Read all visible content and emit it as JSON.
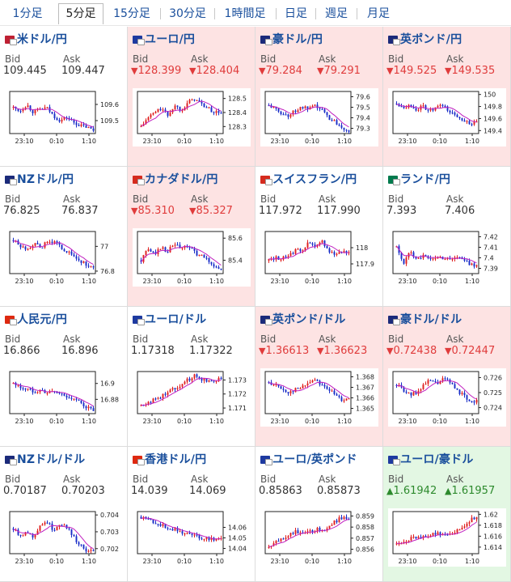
{
  "tabs": [
    {
      "label": "1分足",
      "active": false
    },
    {
      "label": "5分足",
      "active": true
    },
    {
      "label": "15分足",
      "active": false
    },
    {
      "label": "30分足",
      "active": false
    },
    {
      "label": "1時間足",
      "active": false
    },
    {
      "label": "日足",
      "active": false
    },
    {
      "label": "週足",
      "active": false
    },
    {
      "label": "月足",
      "active": false
    }
  ],
  "labels": {
    "bid": "Bid",
    "ask": "Ask"
  },
  "colors": {
    "down_bg": "#fde3e3",
    "up_bg": "#e3f7e3",
    "up_candle": "#e02020",
    "down_candle": "#1a2ec8",
    "ma_line": "#c020c0"
  },
  "pairs": [
    {
      "name": "米ドル/円",
      "flag": "us-jp-flag-icon",
      "state": "neutral",
      "bid": "109.445",
      "ask": "109.447",
      "arrow": "",
      "chart_data": {
        "type": "candlestick",
        "x_ticks": [
          "23:10",
          "0:10",
          "1:10"
        ],
        "y_ticks": [
          "109.6",
          "109.5"
        ],
        "ylim": [
          109.42,
          109.68
        ],
        "trend": [
          109.58,
          109.56,
          109.6,
          109.55,
          109.57,
          109.58,
          109.53,
          109.5,
          109.52,
          109.49,
          109.47,
          109.46,
          109.44
        ]
      }
    },
    {
      "name": "ユーロ/円",
      "flag": "eu-jp-flag-icon",
      "state": "down",
      "bid": "128.399",
      "ask": "128.404",
      "arrow": "▼",
      "chart_data": {
        "type": "candlestick",
        "x_ticks": [
          "23:10",
          "0:10",
          "1:10"
        ],
        "y_ticks": [
          "128.5",
          "128.4",
          "128.3"
        ],
        "ylim": [
          128.25,
          128.55
        ],
        "trend": [
          128.3,
          128.36,
          128.4,
          128.43,
          128.38,
          128.45,
          128.42,
          128.47,
          128.5,
          128.46,
          128.43,
          128.4,
          128.4
        ]
      }
    },
    {
      "name": "豪ドル/円",
      "flag": "au-jp-flag-icon",
      "state": "down",
      "bid": "79.284",
      "ask": "79.291",
      "arrow": "▼",
      "chart_data": {
        "type": "candlestick",
        "x_ticks": [
          "23:10",
          "0:10",
          "1:10"
        ],
        "y_ticks": [
          "79.6",
          "79.5",
          "79.4",
          "79.3"
        ],
        "ylim": [
          79.25,
          79.65
        ],
        "trend": [
          79.52,
          79.48,
          79.44,
          79.42,
          79.47,
          79.5,
          79.48,
          79.51,
          79.47,
          79.4,
          79.36,
          79.31,
          79.28
        ]
      }
    },
    {
      "name": "英ポンド/円",
      "flag": "uk-jp-flag-icon",
      "state": "down",
      "bid": "149.525",
      "ask": "149.535",
      "arrow": "▼",
      "chart_data": {
        "type": "candlestick",
        "x_ticks": [
          "23:10",
          "0:10",
          "1:10"
        ],
        "y_ticks": [
          "150",
          "149.8",
          "149.6",
          "149.4"
        ],
        "ylim": [
          149.35,
          150.05
        ],
        "trend": [
          149.85,
          149.8,
          149.82,
          149.75,
          149.8,
          149.72,
          149.78,
          149.82,
          149.7,
          149.64,
          149.58,
          149.52,
          149.52
        ]
      }
    },
    {
      "name": "NZドル/円",
      "flag": "nz-jp-flag-icon",
      "state": "neutral",
      "bid": "76.825",
      "ask": "76.837",
      "arrow": "",
      "chart_data": {
        "type": "candlestick",
        "x_ticks": [
          "23:10",
          "0:10",
          "1:10"
        ],
        "y_ticks": [
          "77",
          "76.8"
        ],
        "ylim": [
          76.78,
          77.12
        ],
        "trend": [
          77.05,
          77.0,
          76.98,
          77.02,
          76.99,
          77.03,
          77.04,
          77.0,
          76.96,
          76.92,
          76.88,
          76.85,
          76.82
        ]
      }
    },
    {
      "name": "カナダドル/円",
      "flag": "ca-jp-flag-icon",
      "state": "down",
      "bid": "85.310",
      "ask": "85.327",
      "arrow": "▼",
      "chart_data": {
        "type": "candlestick",
        "x_ticks": [
          "23:10",
          "0:10",
          "1:10"
        ],
        "y_ticks": [
          "85.6",
          "85.4"
        ],
        "ylim": [
          85.28,
          85.66
        ],
        "trend": [
          85.4,
          85.5,
          85.46,
          85.52,
          85.48,
          85.55,
          85.5,
          85.53,
          85.47,
          85.44,
          85.4,
          85.35,
          85.31
        ]
      }
    },
    {
      "name": "スイスフラン/円",
      "flag": "ch-jp-flag-icon",
      "state": "neutral",
      "bid": "117.972",
      "ask": "117.990",
      "arrow": "",
      "chart_data": {
        "type": "candlestick",
        "x_ticks": [
          "23:10",
          "0:10",
          "1:10"
        ],
        "y_ticks": [
          "118",
          "117.9"
        ],
        "ylim": [
          117.84,
          118.1
        ],
        "trend": [
          117.92,
          117.94,
          117.93,
          117.96,
          117.98,
          117.99,
          118.03,
          118.0,
          118.04,
          117.98,
          117.96,
          117.98,
          117.97
        ]
      }
    },
    {
      "name": "ランド/円",
      "flag": "za-jp-flag-icon",
      "state": "neutral",
      "bid": "7.393",
      "ask": "7.406",
      "arrow": "",
      "chart_data": {
        "type": "candlestick",
        "x_ticks": [
          "23:10",
          "0:10",
          "1:10"
        ],
        "y_ticks": [
          "7.42",
          "7.41",
          "7.4",
          "7.39"
        ],
        "ylim": [
          7.385,
          7.425
        ],
        "trend": [
          7.41,
          7.395,
          7.405,
          7.4,
          7.402,
          7.398,
          7.401,
          7.4,
          7.399,
          7.401,
          7.398,
          7.394,
          7.393
        ]
      }
    },
    {
      "name": "人民元/円",
      "flag": "cn-jp-flag-icon",
      "state": "neutral",
      "bid": "16.866",
      "ask": "16.896",
      "arrow": "",
      "chart_data": {
        "type": "candlestick",
        "x_ticks": [
          "23:10",
          "0:10",
          "1:10"
        ],
        "y_ticks": [
          "16.9",
          "16.88"
        ],
        "ylim": [
          16.862,
          16.915
        ],
        "trend": [
          16.9,
          16.895,
          16.893,
          16.89,
          16.892,
          16.888,
          16.89,
          16.887,
          16.884,
          16.88,
          16.876,
          16.87,
          16.866
        ]
      }
    },
    {
      "name": "ユーロ/ドル",
      "flag": "eu-us-flag-icon",
      "state": "neutral",
      "bid": "1.17318",
      "ask": "1.17322",
      "arrow": "",
      "chart_data": {
        "type": "candlestick",
        "x_ticks": [
          "23:10",
          "0:10",
          "1:10"
        ],
        "y_ticks": [
          "1.173",
          "1.172",
          "1.171"
        ],
        "ylim": [
          1.1706,
          1.1736
        ],
        "trend": [
          1.1712,
          1.1714,
          1.1716,
          1.1718,
          1.1722,
          1.1724,
          1.1727,
          1.173,
          1.1733,
          1.1731,
          1.1729,
          1.173,
          1.1732
        ]
      }
    },
    {
      "name": "英ポンド/ドル",
      "flag": "uk-us-flag-icon",
      "state": "down",
      "bid": "1.36613",
      "ask": "1.36623",
      "arrow": "▼",
      "chart_data": {
        "type": "candlestick",
        "x_ticks": [
          "23:10",
          "0:10",
          "1:10"
        ],
        "y_ticks": [
          "1.368",
          "1.367",
          "1.366",
          "1.365"
        ],
        "ylim": [
          1.3645,
          1.3685
        ],
        "trend": [
          1.3675,
          1.3672,
          1.3668,
          1.3665,
          1.3668,
          1.367,
          1.3675,
          1.3678,
          1.3672,
          1.3668,
          1.3662,
          1.3658,
          1.3661
        ]
      }
    },
    {
      "name": "豪ドル/ドル",
      "flag": "au-us-flag-icon",
      "state": "down",
      "bid": "0.72438",
      "ask": "0.72447",
      "arrow": "▼",
      "chart_data": {
        "type": "candlestick",
        "x_ticks": [
          "23:10",
          "0:10",
          "1:10"
        ],
        "y_ticks": [
          "0.726",
          "0.725",
          "0.724"
        ],
        "ylim": [
          0.7236,
          0.7264
        ],
        "trend": [
          0.7255,
          0.7252,
          0.7248,
          0.725,
          0.7255,
          0.7258,
          0.7256,
          0.7259,
          0.7257,
          0.7252,
          0.7248,
          0.7245,
          0.7244
        ]
      }
    },
    {
      "name": "NZドル/ドル",
      "flag": "nz-us-flag-icon",
      "state": "neutral",
      "bid": "0.70187",
      "ask": "0.70203",
      "arrow": "",
      "chart_data": {
        "type": "candlestick",
        "x_ticks": [
          "23:10",
          "0:10",
          "1:10"
        ],
        "y_ticks": [
          "0.704",
          "0.703",
          "0.702"
        ],
        "ylim": [
          0.7017,
          0.7042
        ],
        "trend": [
          0.7032,
          0.7028,
          0.703,
          0.7027,
          0.7034,
          0.7036,
          0.7031,
          0.7035,
          0.7033,
          0.7027,
          0.7022,
          0.7019,
          0.7018
        ]
      }
    },
    {
      "name": "香港ドル/円",
      "flag": "hk-jp-flag-icon",
      "state": "neutral",
      "bid": "14.039",
      "ask": "14.069",
      "arrow": "",
      "chart_data": {
        "type": "candlestick",
        "x_ticks": [
          "23:10",
          "0:10",
          "1:10"
        ],
        "y_ticks": [
          "14.06",
          "14.05",
          "14.04"
        ],
        "ylim": [
          14.035,
          14.075
        ],
        "trend": [
          14.07,
          14.068,
          14.065,
          14.062,
          14.06,
          14.058,
          14.056,
          14.054,
          14.052,
          14.05,
          14.05,
          14.049,
          14.049
        ]
      }
    },
    {
      "name": "ユーロ/英ポンド",
      "flag": "eu-uk-flag-icon",
      "state": "neutral",
      "bid": "0.85863",
      "ask": "0.85873",
      "arrow": "",
      "chart_data": {
        "type": "candlestick",
        "x_ticks": [
          "23:10",
          "0:10",
          "1:10"
        ],
        "y_ticks": [
          "0.859",
          "0.858",
          "0.857",
          "0.856"
        ],
        "ylim": [
          0.8556,
          0.8594
        ],
        "trend": [
          0.8561,
          0.8566,
          0.857,
          0.8573,
          0.8576,
          0.8574,
          0.8575,
          0.8578,
          0.8577,
          0.8581,
          0.8585,
          0.8589,
          0.8587
        ]
      }
    },
    {
      "name": "ユーロ/豪ドル",
      "flag": "eu-au-flag-icon",
      "state": "up",
      "bid": "1.61942",
      "ask": "1.61957",
      "arrow": "▲",
      "chart_data": {
        "type": "candlestick",
        "x_ticks": [
          "23:10",
          "0:10",
          "1:10"
        ],
        "y_ticks": [
          "1.62",
          "1.618",
          "1.616",
          "1.614"
        ],
        "ylim": [
          1.6128,
          1.6205
        ],
        "trend": [
          1.6145,
          1.6152,
          1.6155,
          1.6158,
          1.616,
          1.6162,
          1.6165,
          1.6163,
          1.6166,
          1.617,
          1.6178,
          1.619,
          1.6195
        ]
      }
    }
  ]
}
